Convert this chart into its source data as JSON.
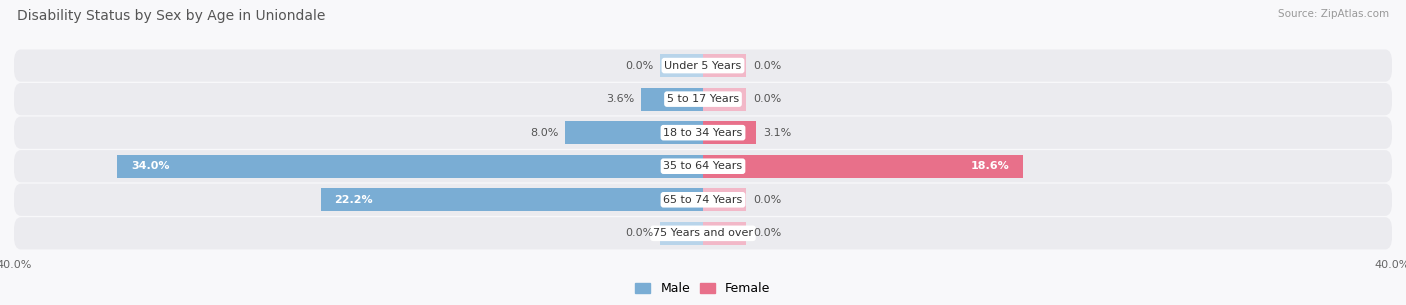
{
  "title": "Disability Status by Sex by Age in Uniondale",
  "source": "Source: ZipAtlas.com",
  "categories": [
    "Under 5 Years",
    "5 to 17 Years",
    "18 to 34 Years",
    "35 to 64 Years",
    "65 to 74 Years",
    "75 Years and over"
  ],
  "male_values": [
    0.0,
    3.6,
    8.0,
    34.0,
    22.2,
    0.0
  ],
  "female_values": [
    0.0,
    0.0,
    3.1,
    18.6,
    0.0,
    0.0
  ],
  "male_color": "#7aadd4",
  "female_color": "#e8708a",
  "male_stub_color": "#b8d4ea",
  "female_stub_color": "#f2b8c8",
  "axis_max": 40.0,
  "stub_value": 2.5,
  "row_bg_color": "#ebebef",
  "row_bg_gap_color": "#f8f8fa",
  "title_color": "#555555",
  "title_fontsize": 10,
  "label_fontsize": 8,
  "value_fontsize": 8,
  "legend_fontsize": 9,
  "bar_height": 0.68
}
